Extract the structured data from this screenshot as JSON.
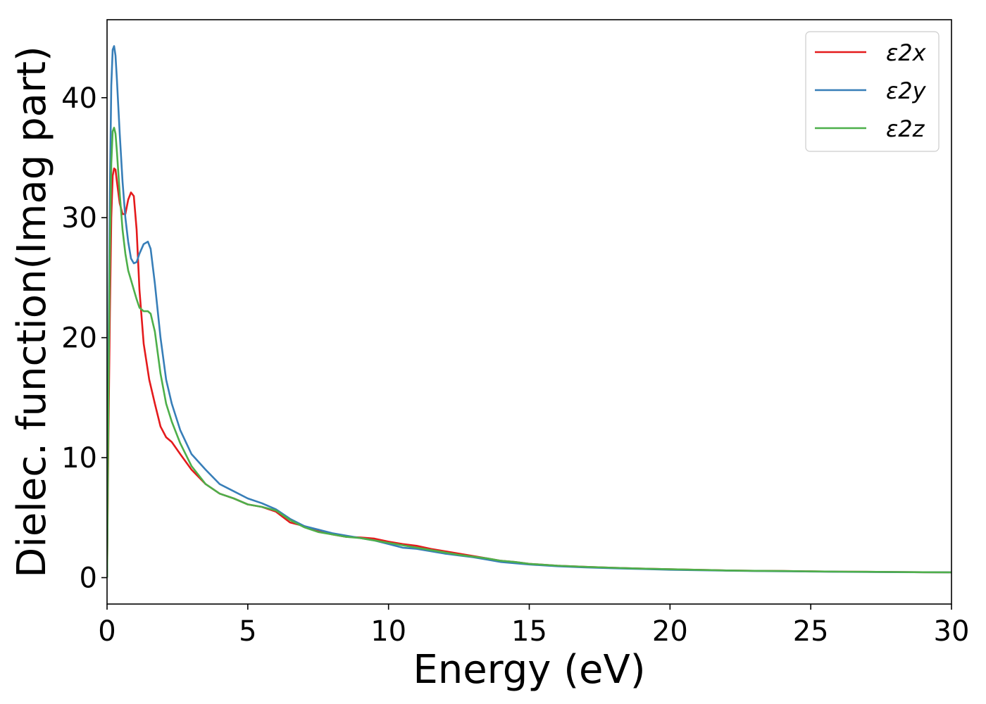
{
  "chart_data": {
    "type": "line",
    "title": "",
    "xlabel": "Energy (eV)",
    "ylabel": "Dielec. function(Imag part)",
    "xlim": [
      0,
      30
    ],
    "ylim": [
      -2.2,
      46.5
    ],
    "xticks": [
      0,
      5,
      10,
      15,
      20,
      25,
      30
    ],
    "yticks": [
      0,
      10,
      20,
      30,
      40
    ],
    "grid": false,
    "legend_position": "top-right",
    "series": [
      {
        "name": "ε2x",
        "color": "#e41a1c",
        "x": [
          0,
          0.05,
          0.1,
          0.15,
          0.2,
          0.25,
          0.3,
          0.35,
          0.45,
          0.55,
          0.65,
          0.75,
          0.85,
          0.95,
          1.05,
          1.15,
          1.3,
          1.5,
          1.7,
          1.9,
          2.1,
          2.3,
          2.6,
          3.0,
          3.5,
          4.0,
          4.5,
          5.0,
          5.5,
          6.0,
          6.5,
          7.0,
          7.5,
          8.0,
          8.5,
          9.0,
          9.5,
          10.0,
          10.5,
          11.0,
          11.5,
          12.0,
          12.5,
          13.0,
          13.5,
          14.0,
          14.5,
          15.0,
          16.0,
          17.0,
          18.0,
          19.0,
          20.0,
          21.0,
          22.0,
          23.0,
          24.0,
          25.0,
          26.0,
          27.0,
          28.0,
          29.0,
          30.0
        ],
        "y": [
          0,
          12,
          22,
          30,
          33.5,
          34.1,
          34.0,
          33.0,
          31.2,
          30.3,
          30.3,
          31.5,
          32.1,
          31.8,
          29.0,
          24.0,
          19.5,
          16.5,
          14.5,
          12.6,
          11.7,
          11.3,
          10.3,
          9.0,
          7.8,
          7.0,
          6.6,
          6.1,
          5.9,
          5.5,
          4.6,
          4.3,
          3.9,
          3.6,
          3.4,
          3.35,
          3.25,
          3.0,
          2.8,
          2.65,
          2.4,
          2.2,
          2.0,
          1.8,
          1.6,
          1.4,
          1.3,
          1.15,
          1.0,
          0.9,
          0.82,
          0.75,
          0.7,
          0.65,
          0.6,
          0.57,
          0.55,
          0.52,
          0.5,
          0.49,
          0.47,
          0.45,
          0.44
        ]
      },
      {
        "name": "ε2y",
        "color": "#377eb8",
        "x": [
          0,
          0.05,
          0.1,
          0.15,
          0.2,
          0.25,
          0.3,
          0.35,
          0.45,
          0.55,
          0.65,
          0.75,
          0.85,
          0.95,
          1.05,
          1.15,
          1.3,
          1.45,
          1.55,
          1.7,
          1.9,
          2.1,
          2.3,
          2.6,
          3.0,
          3.5,
          4.0,
          4.5,
          5.0,
          5.5,
          6.0,
          6.5,
          7.0,
          7.5,
          8.0,
          8.5,
          9.0,
          9.5,
          10.0,
          10.5,
          11.0,
          11.5,
          12.0,
          12.5,
          13.0,
          13.5,
          14.0,
          14.5,
          15.0,
          16.0,
          17.0,
          18.0,
          19.0,
          20.0,
          21.0,
          22.0,
          23.0,
          24.0,
          25.0,
          26.0,
          27.0,
          28.0,
          29.0,
          30.0
        ],
        "y": [
          0,
          18,
          32,
          41,
          44.0,
          44.3,
          43.5,
          41.5,
          37.0,
          33.0,
          30.0,
          28.0,
          26.6,
          26.2,
          26.3,
          27.0,
          27.8,
          28.0,
          27.4,
          24.5,
          20.0,
          16.5,
          14.5,
          12.3,
          10.3,
          9.0,
          7.8,
          7.2,
          6.6,
          6.2,
          5.7,
          4.9,
          4.3,
          4.0,
          3.7,
          3.5,
          3.3,
          3.1,
          2.8,
          2.5,
          2.4,
          2.2,
          2.0,
          1.85,
          1.7,
          1.5,
          1.3,
          1.2,
          1.1,
          0.95,
          0.85,
          0.78,
          0.72,
          0.66,
          0.62,
          0.58,
          0.55,
          0.53,
          0.51,
          0.49,
          0.47,
          0.46,
          0.45,
          0.44
        ]
      },
      {
        "name": "ε2z",
        "color": "#4daf4a",
        "x": [
          0,
          0.05,
          0.1,
          0.15,
          0.2,
          0.25,
          0.3,
          0.35,
          0.45,
          0.55,
          0.65,
          0.75,
          0.85,
          0.95,
          1.05,
          1.15,
          1.3,
          1.45,
          1.55,
          1.7,
          1.9,
          2.1,
          2.3,
          2.6,
          3.0,
          3.5,
          4.0,
          4.5,
          5.0,
          5.5,
          6.0,
          6.5,
          7.0,
          7.5,
          8.0,
          8.5,
          9.0,
          9.5,
          10.0,
          10.5,
          11.0,
          11.5,
          12.0,
          12.5,
          13.0,
          13.5,
          14.0,
          14.5,
          15.0,
          16.0,
          17.0,
          18.0,
          19.0,
          20.0,
          21.0,
          22.0,
          23.0,
          24.0,
          25.0,
          26.0,
          27.0,
          28.0,
          29.0,
          30.0
        ],
        "y": [
          0,
          15,
          27,
          34.5,
          37.2,
          37.5,
          37.0,
          35.5,
          32.0,
          29.0,
          27.0,
          25.6,
          24.8,
          24.0,
          23.2,
          22.5,
          22.2,
          22.2,
          22.0,
          20.5,
          17.0,
          14.5,
          13.0,
          11.2,
          9.3,
          7.8,
          7.0,
          6.6,
          6.1,
          5.9,
          5.6,
          4.8,
          4.2,
          3.8,
          3.6,
          3.4,
          3.3,
          3.1,
          2.9,
          2.7,
          2.5,
          2.3,
          2.1,
          1.9,
          1.75,
          1.6,
          1.4,
          1.3,
          1.15,
          1.0,
          0.9,
          0.82,
          0.75,
          0.7,
          0.65,
          0.6,
          0.57,
          0.55,
          0.52,
          0.5,
          0.49,
          0.47,
          0.45,
          0.44
        ]
      }
    ]
  }
}
